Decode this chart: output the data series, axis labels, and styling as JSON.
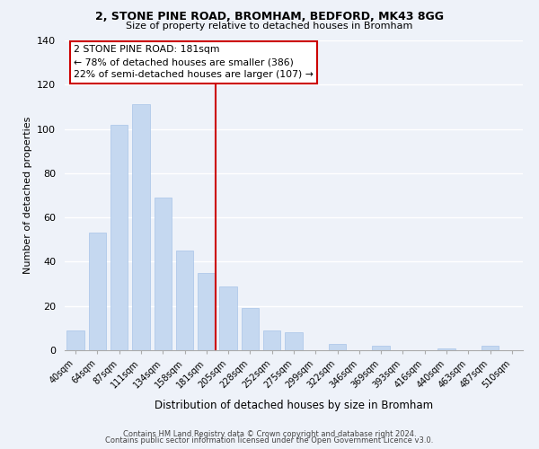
{
  "title1": "2, STONE PINE ROAD, BROMHAM, BEDFORD, MK43 8GG",
  "title2": "Size of property relative to detached houses in Bromham",
  "xlabel": "Distribution of detached houses by size in Bromham",
  "ylabel": "Number of detached properties",
  "bar_labels": [
    "40sqm",
    "64sqm",
    "87sqm",
    "111sqm",
    "134sqm",
    "158sqm",
    "181sqm",
    "205sqm",
    "228sqm",
    "252sqm",
    "275sqm",
    "299sqm",
    "322sqm",
    "346sqm",
    "369sqm",
    "393sqm",
    "416sqm",
    "440sqm",
    "463sqm",
    "487sqm",
    "510sqm"
  ],
  "bar_values": [
    9,
    53,
    102,
    111,
    69,
    45,
    35,
    29,
    19,
    9,
    8,
    0,
    3,
    0,
    2,
    0,
    0,
    1,
    0,
    2,
    0
  ],
  "bar_color": "#c5d8f0",
  "bar_edge_color": "#a8c4e8",
  "vline_index": 6,
  "vline_color": "#cc0000",
  "annotation_title": "2 STONE PINE ROAD: 181sqm",
  "annotation_line1": "← 78% of detached houses are smaller (386)",
  "annotation_line2": "22% of semi-detached houses are larger (107) →",
  "box_facecolor": "#ffffff",
  "box_edgecolor": "#cc0000",
  "ylim": [
    0,
    140
  ],
  "yticks": [
    0,
    20,
    40,
    60,
    80,
    100,
    120,
    140
  ],
  "footer1": "Contains HM Land Registry data © Crown copyright and database right 2024.",
  "footer2": "Contains public sector information licensed under the Open Government Licence v3.0.",
  "background_color": "#eef2f9"
}
